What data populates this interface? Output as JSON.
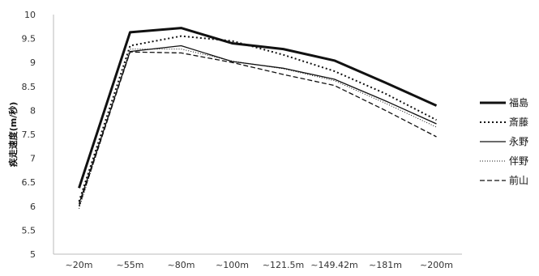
{
  "chart_data": {
    "type": "line",
    "title": "",
    "xlabel": "",
    "ylabel": "疾走速度(m/秒)",
    "ylim": [
      5,
      10
    ],
    "ytick_step": 0.5,
    "yticks": [
      "5",
      "5.5",
      "6",
      "6.5",
      "7",
      "7.5",
      "8",
      "8.5",
      "9",
      "9.5",
      "10"
    ],
    "grid": false,
    "legend_position": "right",
    "categories": [
      "~20m",
      "~55m",
      "~80m",
      "~100m",
      "~121.5m",
      "~149.42m",
      "~181m",
      "~200m"
    ],
    "series": [
      {
        "name": "福島",
        "style": "thick-solid",
        "color": "#111111",
        "values": [
          6.38,
          9.63,
          9.72,
          9.4,
          9.28,
          9.04,
          8.58,
          8.1
        ]
      },
      {
        "name": "斎藤",
        "style": "dotted",
        "color": "#111111",
        "values": [
          6.1,
          9.35,
          9.55,
          9.45,
          9.16,
          8.82,
          8.35,
          7.8
        ]
      },
      {
        "name": "永野",
        "style": "solid",
        "color": "#111111",
        "values": [
          6.05,
          9.23,
          9.35,
          9.02,
          8.88,
          8.65,
          8.2,
          7.72
        ]
      },
      {
        "name": "伴野",
        "style": "fine-dotted",
        "color": "#111111",
        "values": [
          5.95,
          9.28,
          9.28,
          9.03,
          8.87,
          8.62,
          8.15,
          7.65
        ]
      },
      {
        "name": "前山",
        "style": "dashed",
        "color": "#111111",
        "values": [
          6.0,
          9.22,
          9.2,
          9.0,
          8.75,
          8.52,
          8.0,
          7.45
        ]
      }
    ]
  }
}
